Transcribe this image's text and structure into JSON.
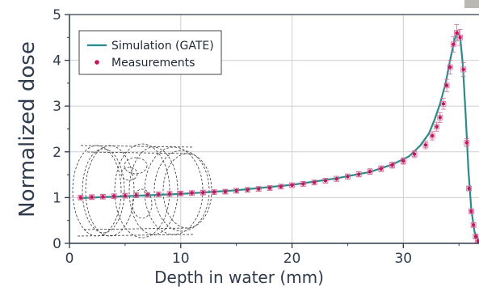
{
  "chart_data": {
    "type": "line",
    "title": "",
    "xlabel": "Depth in water (mm)",
    "ylabel": "Normalized dose",
    "xlim": [
      0,
      36.8
    ],
    "ylim": [
      0,
      5
    ],
    "xticks": [
      0,
      10,
      20,
      30
    ],
    "yticks": [
      0,
      1,
      2,
      3,
      4,
      5
    ],
    "grid": true,
    "legend_position": "top-left",
    "series": [
      {
        "name": "Simulation (GATE)",
        "style": "line",
        "color": "#2b8a8a",
        "x": [
          1.0,
          5.0,
          10.0,
          15.0,
          20.0,
          24.0,
          27.0,
          29.0,
          30.5,
          31.5,
          32.3,
          32.8,
          33.3,
          33.8,
          34.2,
          34.6,
          34.85,
          35.1,
          35.35,
          35.6,
          35.85,
          36.1,
          36.4,
          36.8
        ],
        "y": [
          0.99,
          1.03,
          1.08,
          1.16,
          1.28,
          1.42,
          1.56,
          1.72,
          1.9,
          2.13,
          2.4,
          2.7,
          3.05,
          3.5,
          4.0,
          4.45,
          4.62,
          4.52,
          3.9,
          2.8,
          1.6,
          0.75,
          0.25,
          0.05
        ]
      },
      {
        "name": "Measurements",
        "style": "markers",
        "color": "#c0185a",
        "x": [
          1.0,
          2.0,
          3.0,
          4.0,
          5.0,
          6.0,
          7.0,
          8.0,
          9.0,
          10.0,
          11.0,
          12.0,
          13.0,
          14.0,
          15.0,
          16.0,
          17.0,
          18.0,
          19.0,
          20.0,
          21.0,
          22.0,
          23.0,
          24.0,
          25.0,
          26.0,
          27.0,
          28.0,
          29.0,
          30.0,
          31.0,
          32.0,
          32.6,
          33.0,
          33.3,
          33.6,
          33.9,
          34.2,
          34.5,
          34.8,
          35.1,
          35.4,
          35.7,
          35.9,
          36.1,
          36.3,
          36.5,
          36.7
        ],
        "y": [
          1.0,
          1.01,
          1.02,
          1.03,
          1.04,
          1.05,
          1.06,
          1.07,
          1.08,
          1.09,
          1.1,
          1.11,
          1.12,
          1.13,
          1.15,
          1.17,
          1.19,
          1.21,
          1.24,
          1.27,
          1.3,
          1.33,
          1.37,
          1.41,
          1.46,
          1.51,
          1.57,
          1.63,
          1.71,
          1.8,
          1.95,
          2.15,
          2.35,
          2.55,
          2.75,
          3.05,
          3.45,
          3.85,
          4.35,
          4.6,
          4.5,
          3.8,
          2.2,
          1.2,
          0.7,
          0.4,
          0.15,
          0.05
        ]
      }
    ]
  }
}
